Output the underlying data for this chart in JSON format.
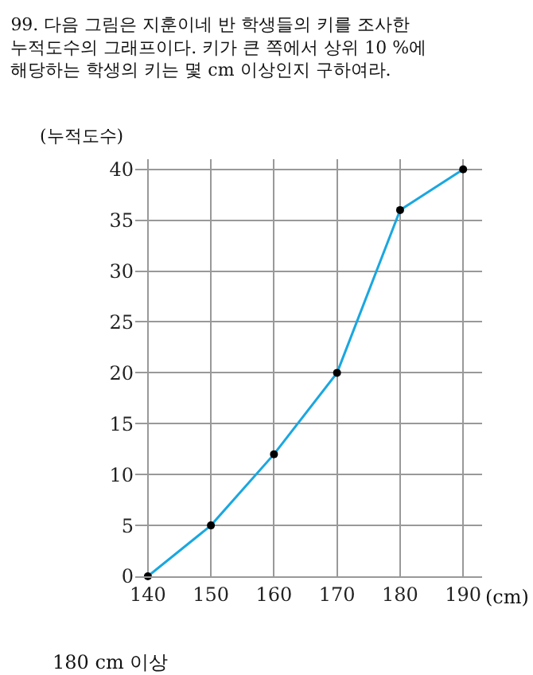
{
  "chart_data": {
    "type": "line",
    "title": "99. 다음 그림은 지훈이네 반 학생들의 키를 조사한 누적도수의 그래프이다. 키가 큰 쪽에서 상위 10 %에 해당하는 학생의 키는 몇 cm 이상인지 구하여라.",
    "xlabel": "(cm)",
    "ylabel": "(누적도수)",
    "x": [
      140,
      150,
      160,
      170,
      180,
      190
    ],
    "series": [
      {
        "color": "#1aa7e0",
        "values": [
          0,
          5,
          12,
          20,
          36,
          40
        ]
      }
    ],
    "xlim": [
      138,
      193
    ],
    "xticks": [
      140,
      150,
      160,
      170,
      180,
      190
    ],
    "ylim": [
      0,
      41
    ],
    "yticks": [
      0,
      5,
      10,
      15,
      20,
      25,
      30,
      35,
      40
    ],
    "grid": true,
    "marker": "circle",
    "line_style": "solid",
    "annotations": [
      "180 cm 이상"
    ]
  }
}
